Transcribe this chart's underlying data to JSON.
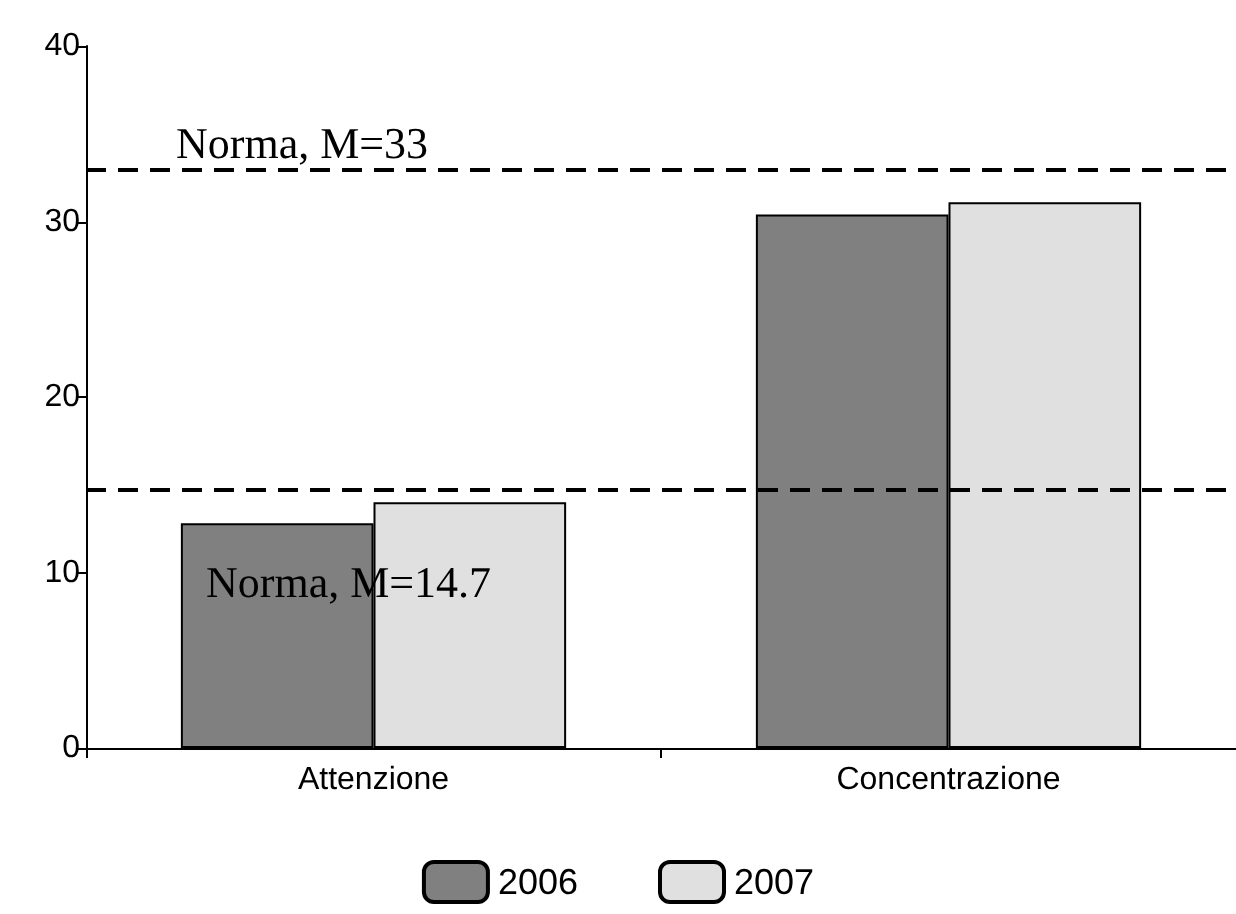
{
  "chart_data": {
    "type": "bar",
    "categories": [
      "Attenzione",
      "Concentrazione"
    ],
    "series": [
      {
        "name": "2006",
        "color": "#808080",
        "values": [
          12.8,
          30.4
        ]
      },
      {
        "name": "2007",
        "color": "#e0e0e0",
        "values": [
          14.0,
          31.1
        ]
      }
    ],
    "ylim": [
      0,
      40
    ],
    "yticks": [
      0,
      10,
      20,
      30,
      40
    ],
    "ref_lines": [
      {
        "axis": "y",
        "value": 33,
        "label": "Norma, M=33",
        "line_style": "dashed",
        "color": "#000000"
      },
      {
        "axis": "y",
        "value": 14.7,
        "label": "Norma, M=14.7",
        "line_style": "dashed",
        "color": "#000000"
      }
    ],
    "grid": false,
    "legend": "bottom"
  }
}
